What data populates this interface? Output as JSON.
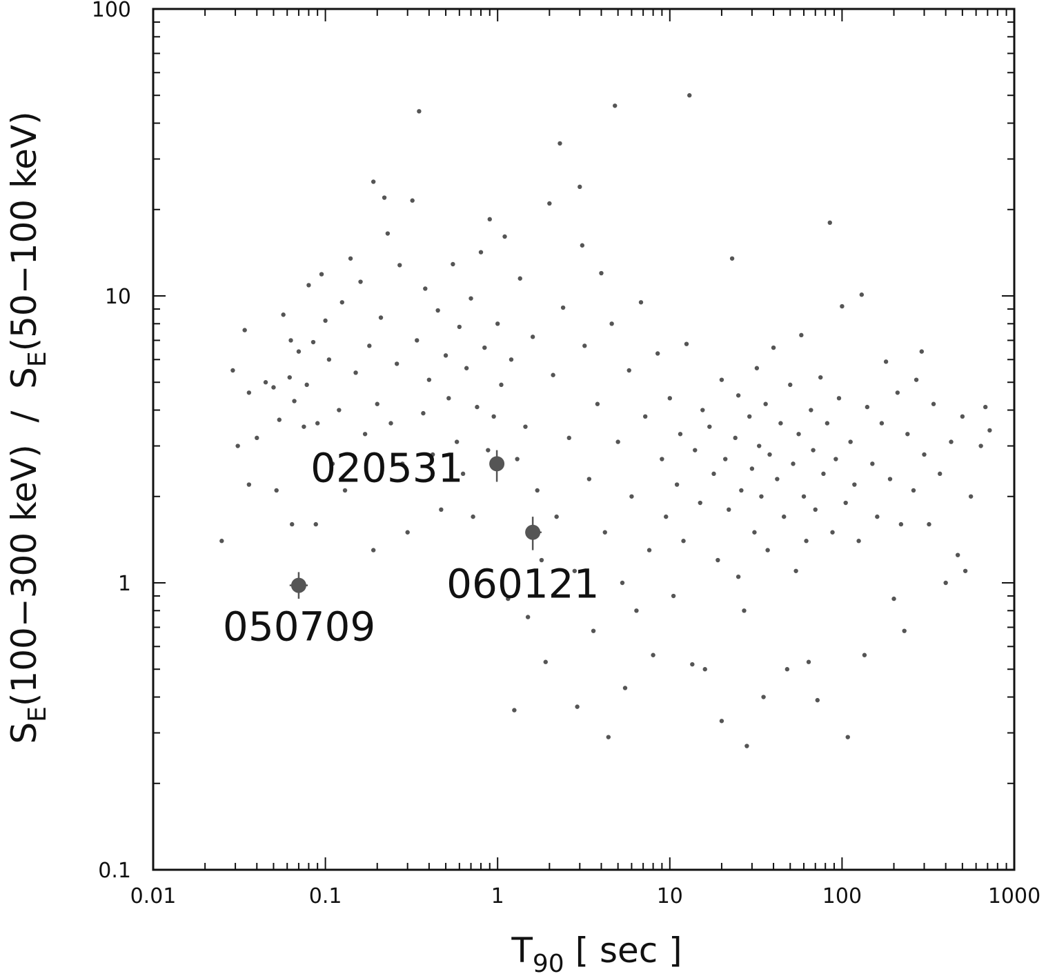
{
  "chart_data": {
    "type": "scatter",
    "xscale": "log",
    "yscale": "log",
    "xlim": [
      0.01,
      1000
    ],
    "ylim": [
      0.1,
      100
    ],
    "xlabel": {
      "main": "T",
      "sub": "90",
      "tail": " [ sec ]"
    },
    "ylabel": {
      "p1": "S",
      "s1": "E",
      "p2": "(100−300 keV)  /  S",
      "s2": "E",
      "p3": "(50−100 keV)"
    },
    "x_major_ticks": [
      {
        "value": 0.01,
        "label": "0.01"
      },
      {
        "value": 0.1,
        "label": "0.1"
      },
      {
        "value": 1,
        "label": "1"
      },
      {
        "value": 10,
        "label": "10"
      },
      {
        "value": 100,
        "label": "100"
      },
      {
        "value": 1000,
        "label": "1000"
      }
    ],
    "y_major_ticks": [
      {
        "value": 0.1,
        "label": "0.1"
      },
      {
        "value": 1,
        "label": "1"
      },
      {
        "value": 10,
        "label": "10"
      },
      {
        "value": 100,
        "label": "100"
      }
    ],
    "grid": false,
    "marker_color": "#555555",
    "series": [
      {
        "points": [
          [
            0.025,
            1.4
          ],
          [
            0.029,
            5.5
          ],
          [
            0.031,
            3.0
          ],
          [
            0.034,
            7.6
          ],
          [
            0.036,
            4.6
          ],
          [
            0.036,
            2.2
          ],
          [
            0.04,
            3.2
          ],
          [
            0.045,
            5.0
          ],
          [
            0.05,
            4.8
          ],
          [
            0.052,
            2.1
          ],
          [
            0.054,
            3.7
          ],
          [
            0.057,
            8.6
          ],
          [
            0.062,
            5.2
          ],
          [
            0.063,
            7.0
          ],
          [
            0.064,
            1.6
          ],
          [
            0.066,
            4.3
          ],
          [
            0.07,
            6.4
          ],
          [
            0.075,
            3.5
          ],
          [
            0.078,
            4.9
          ],
          [
            0.08,
            10.9
          ],
          [
            0.085,
            6.9
          ],
          [
            0.088,
            1.6
          ],
          [
            0.09,
            3.6
          ],
          [
            0.095,
            11.9
          ],
          [
            0.1,
            8.2
          ],
          [
            0.105,
            6.0
          ],
          [
            0.11,
            2.6
          ],
          [
            0.12,
            4.0
          ],
          [
            0.125,
            9.5
          ],
          [
            0.13,
            2.1
          ],
          [
            0.14,
            13.5
          ],
          [
            0.15,
            5.4
          ],
          [
            0.16,
            11.2
          ],
          [
            0.17,
            3.3
          ],
          [
            0.18,
            6.7
          ],
          [
            0.19,
            25.0
          ],
          [
            0.19,
            1.3
          ],
          [
            0.2,
            4.2
          ],
          [
            0.21,
            8.4
          ],
          [
            0.22,
            22.0
          ],
          [
            0.23,
            16.5
          ],
          [
            0.24,
            3.6
          ],
          [
            0.26,
            5.8
          ],
          [
            0.27,
            12.8
          ],
          [
            0.28,
            2.6
          ],
          [
            0.3,
            1.5
          ],
          [
            0.32,
            21.5
          ],
          [
            0.34,
            7.0
          ],
          [
            0.35,
            44.0
          ],
          [
            0.37,
            3.9
          ],
          [
            0.38,
            10.6
          ],
          [
            0.4,
            5.1
          ],
          [
            0.42,
            2.8
          ],
          [
            0.45,
            8.9
          ],
          [
            0.47,
            1.8
          ],
          [
            0.5,
            6.2
          ],
          [
            0.52,
            4.4
          ],
          [
            0.55,
            12.9
          ],
          [
            0.58,
            3.1
          ],
          [
            0.6,
            7.8
          ],
          [
            0.63,
            2.4
          ],
          [
            0.66,
            5.6
          ],
          [
            0.7,
            9.8
          ],
          [
            0.72,
            1.7
          ],
          [
            0.76,
            4.1
          ],
          [
            0.8,
            14.2
          ],
          [
            0.84,
            6.6
          ],
          [
            0.88,
            2.9
          ],
          [
            0.9,
            18.5
          ],
          [
            0.95,
            3.8
          ],
          [
            1.0,
            8.0
          ],
          [
            1.05,
            4.9
          ],
          [
            1.1,
            16.1
          ],
          [
            1.15,
            0.88
          ],
          [
            1.2,
            6.0
          ],
          [
            1.25,
            0.36
          ],
          [
            1.3,
            2.7
          ],
          [
            1.35,
            11.5
          ],
          [
            1.45,
            3.5
          ],
          [
            1.5,
            0.76
          ],
          [
            1.6,
            7.2
          ],
          [
            1.7,
            2.1
          ],
          [
            1.8,
            1.2
          ],
          [
            1.9,
            0.53
          ],
          [
            2.0,
            21.0
          ],
          [
            2.1,
            5.3
          ],
          [
            2.2,
            1.7
          ],
          [
            2.3,
            34.0
          ],
          [
            2.4,
            9.1
          ],
          [
            2.6,
            3.2
          ],
          [
            2.8,
            1.1
          ],
          [
            2.9,
            0.37
          ],
          [
            3.0,
            24.0
          ],
          [
            3.1,
            15.0
          ],
          [
            3.2,
            6.7
          ],
          [
            3.4,
            2.3
          ],
          [
            3.6,
            0.68
          ],
          [
            3.8,
            4.2
          ],
          [
            4.0,
            12.0
          ],
          [
            4.2,
            1.5
          ],
          [
            4.4,
            0.29
          ],
          [
            4.6,
            8.0
          ],
          [
            4.8,
            46.0
          ],
          [
            5.0,
            3.1
          ],
          [
            5.3,
            1.0
          ],
          [
            5.5,
            0.43
          ],
          [
            5.8,
            5.5
          ],
          [
            6.0,
            2.0
          ],
          [
            6.4,
            0.8
          ],
          [
            6.8,
            9.5
          ],
          [
            7.2,
            3.8
          ],
          [
            7.6,
            1.3
          ],
          [
            8.0,
            0.56
          ],
          [
            8.5,
            6.3
          ],
          [
            9.0,
            2.7
          ],
          [
            9.5,
            1.7
          ],
          [
            10.0,
            4.4
          ],
          [
            10.5,
            0.9
          ],
          [
            11,
            2.2
          ],
          [
            11.5,
            3.3
          ],
          [
            12,
            1.4
          ],
          [
            12.5,
            6.8
          ],
          [
            13,
            50.0
          ],
          [
            13.5,
            0.52
          ],
          [
            14,
            2.9
          ],
          [
            15,
            1.9
          ],
          [
            15.5,
            4.0
          ],
          [
            16,
            0.5
          ],
          [
            17,
            3.5
          ],
          [
            18,
            2.4
          ],
          [
            19,
            1.2
          ],
          [
            20,
            5.1
          ],
          [
            20,
            0.33
          ],
          [
            21,
            2.7
          ],
          [
            22,
            1.8
          ],
          [
            23,
            13.5
          ],
          [
            24,
            3.2
          ],
          [
            25,
            4.5
          ],
          [
            25,
            1.05
          ],
          [
            26,
            2.1
          ],
          [
            27,
            0.8
          ],
          [
            28,
            0.27
          ],
          [
            29,
            3.8
          ],
          [
            30,
            2.5
          ],
          [
            31,
            1.5
          ],
          [
            32,
            5.6
          ],
          [
            33,
            3.0
          ],
          [
            34,
            2.0
          ],
          [
            35,
            0.4
          ],
          [
            36,
            4.2
          ],
          [
            37,
            1.3
          ],
          [
            38,
            2.8
          ],
          [
            40,
            6.6
          ],
          [
            42,
            2.3
          ],
          [
            44,
            3.6
          ],
          [
            46,
            1.7
          ],
          [
            48,
            0.5
          ],
          [
            50,
            4.9
          ],
          [
            52,
            2.6
          ],
          [
            54,
            1.1
          ],
          [
            56,
            3.3
          ],
          [
            58,
            7.3
          ],
          [
            60,
            2.0
          ],
          [
            62,
            1.4
          ],
          [
            64,
            0.53
          ],
          [
            66,
            4.0
          ],
          [
            68,
            2.9
          ],
          [
            70,
            1.8
          ],
          [
            72,
            0.39
          ],
          [
            75,
            5.2
          ],
          [
            78,
            2.4
          ],
          [
            82,
            3.6
          ],
          [
            85,
            18.0
          ],
          [
            88,
            1.5
          ],
          [
            92,
            2.7
          ],
          [
            96,
            4.4
          ],
          [
            100,
            9.2
          ],
          [
            105,
            1.9
          ],
          [
            108,
            0.29
          ],
          [
            112,
            3.1
          ],
          [
            118,
            2.2
          ],
          [
            125,
            1.4
          ],
          [
            130,
            10.1
          ],
          [
            135,
            0.56
          ],
          [
            140,
            4.1
          ],
          [
            150,
            2.6
          ],
          [
            160,
            1.7
          ],
          [
            170,
            3.6
          ],
          [
            180,
            5.9
          ],
          [
            190,
            2.3
          ],
          [
            200,
            0.88
          ],
          [
            210,
            4.6
          ],
          [
            220,
            1.6
          ],
          [
            230,
            0.68
          ],
          [
            240,
            3.3
          ],
          [
            260,
            2.1
          ],
          [
            270,
            5.1
          ],
          [
            290,
            6.4
          ],
          [
            300,
            2.8
          ],
          [
            320,
            1.6
          ],
          [
            340,
            4.2
          ],
          [
            370,
            2.4
          ],
          [
            400,
            1.0
          ],
          [
            430,
            3.1
          ],
          [
            470,
            1.25
          ],
          [
            500,
            3.8
          ],
          [
            520,
            1.1
          ],
          [
            560,
            2.0
          ],
          [
            640,
            3.0
          ],
          [
            680,
            4.1
          ],
          [
            720,
            3.4
          ]
        ]
      }
    ],
    "annotations": [
      {
        "label": "050709",
        "x": 0.07,
        "y": 0.98,
        "y_lo": 0.88,
        "y_hi": 1.09,
        "x_lo": 0.062,
        "x_hi": 0.079
      },
      {
        "label": "020531",
        "x": 0.99,
        "y": 2.6,
        "y_lo": 2.25,
        "y_hi": 2.9
      },
      {
        "label": "060121",
        "x": 1.6,
        "y": 1.5,
        "y_lo": 1.3,
        "y_hi": 1.7,
        "x_lo": 1.47,
        "x_hi": 1.8
      }
    ]
  }
}
